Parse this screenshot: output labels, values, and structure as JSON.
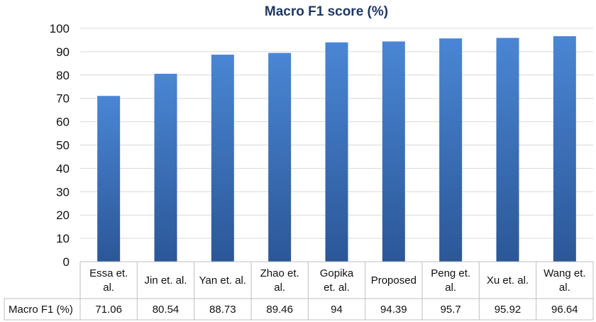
{
  "chart_data": {
    "type": "table",
    "title": "Macro F1 score (%)",
    "categories": [
      [
        "Essa et.",
        "al."
      ],
      [
        "Jin et. al."
      ],
      [
        "Yan et. al."
      ],
      [
        "Zhao et.",
        "al."
      ],
      [
        "Gopika",
        "et. al."
      ],
      [
        "Proposed"
      ],
      [
        "Peng et.",
        "al."
      ],
      [
        "Xu et. al."
      ],
      [
        "Wang et.",
        "al."
      ]
    ],
    "series": [
      {
        "name": "Macro F1 (%)",
        "values": [
          71.06,
          80.54,
          88.73,
          89.46,
          94,
          94.39,
          95.7,
          95.92,
          96.64
        ],
        "labels": [
          "71.06",
          "80.54",
          "88.73",
          "89.46",
          "94",
          "94.39",
          "95.7",
          "95.92",
          "96.64"
        ]
      }
    ],
    "ylim": [
      0,
      100
    ],
    "yticks": [
      0,
      10,
      20,
      30,
      40,
      50,
      60,
      70,
      80,
      90,
      100
    ],
    "grid": true,
    "legend": "data-table-row",
    "colors": {
      "title": "#1f3864",
      "bar_light": "#4a86d4",
      "bar_dark": "#2b5797",
      "grid": "#d9d9d9",
      "table_border": "#bfbfbf"
    }
  }
}
